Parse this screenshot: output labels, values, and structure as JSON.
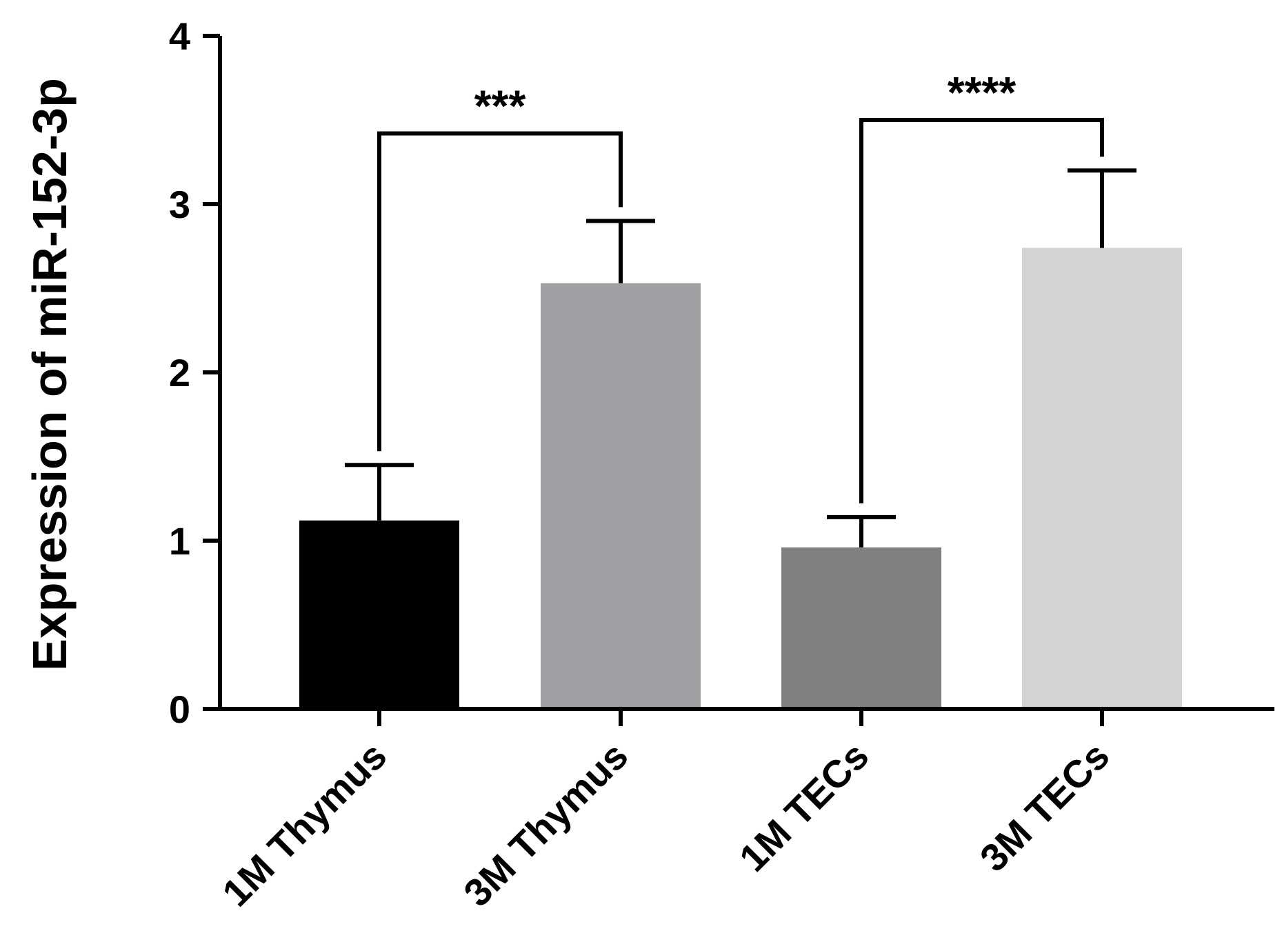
{
  "chart_data": {
    "type": "bar",
    "title": "",
    "xlabel": "",
    "ylabel": "Expression of miR-152-3p",
    "ylim": [
      0,
      4
    ],
    "yticks": [
      0,
      1,
      2,
      3,
      4
    ],
    "categories": [
      "1M Thymus",
      "3M Thymus",
      "1M TECs",
      "3M TECs"
    ],
    "values": [
      1.12,
      2.53,
      0.96,
      2.74
    ],
    "errors": [
      0.33,
      0.37,
      0.18,
      0.46
    ],
    "colors": [
      "#000000",
      "#a0a0a4",
      "#808080",
      "#d3d3d3"
    ],
    "significance": [
      {
        "from": 0,
        "to": 1,
        "label": "***",
        "y": 3.42
      },
      {
        "from": 2,
        "to": 3,
        "label": "****",
        "y": 3.5
      }
    ]
  }
}
